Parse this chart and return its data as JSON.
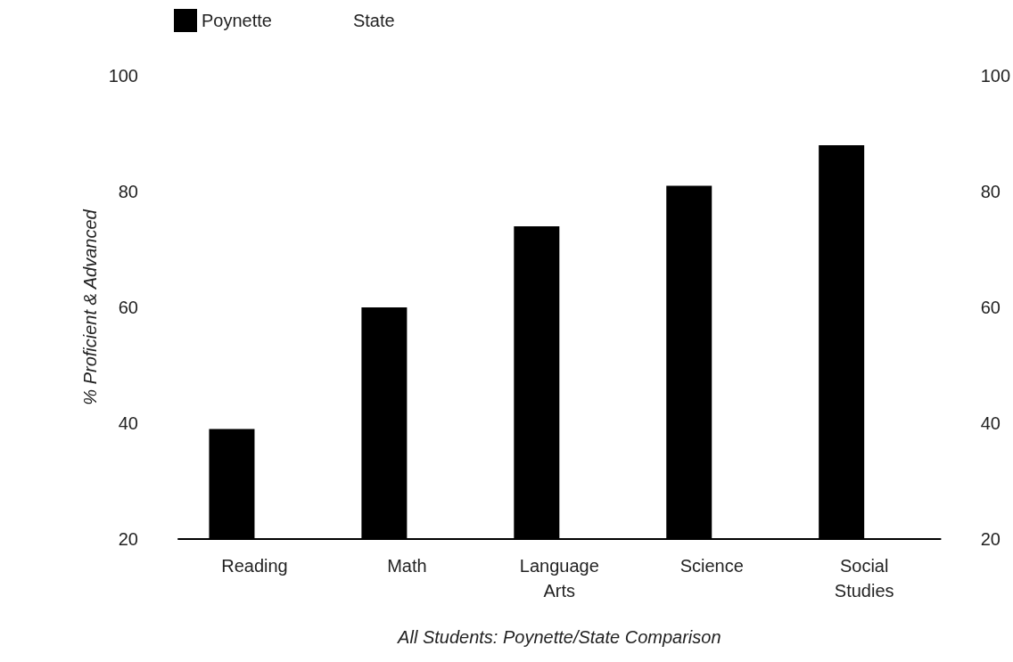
{
  "chart_data": {
    "type": "bar",
    "xlabel": "All Students: Poynette/State Comparison",
    "ylabel": "% Proficient & Advanced",
    "categories": [
      "Reading",
      "Math",
      "Language Arts",
      "Science",
      "Social Studies"
    ],
    "series": [
      {
        "name": "Poynette",
        "color": "#000000",
        "values": [
          39,
          60,
          74,
          81,
          88
        ]
      },
      {
        "name": "State",
        "values": [
          null,
          null,
          null,
          null,
          null
        ]
      }
    ],
    "ylim": [
      20,
      100
    ],
    "yticks": [
      20,
      40,
      60,
      80,
      100
    ],
    "y2lim": [
      20,
      100
    ],
    "y2ticks": [
      20,
      40,
      60,
      80,
      100
    ],
    "grid": false,
    "legend": "top left"
  }
}
